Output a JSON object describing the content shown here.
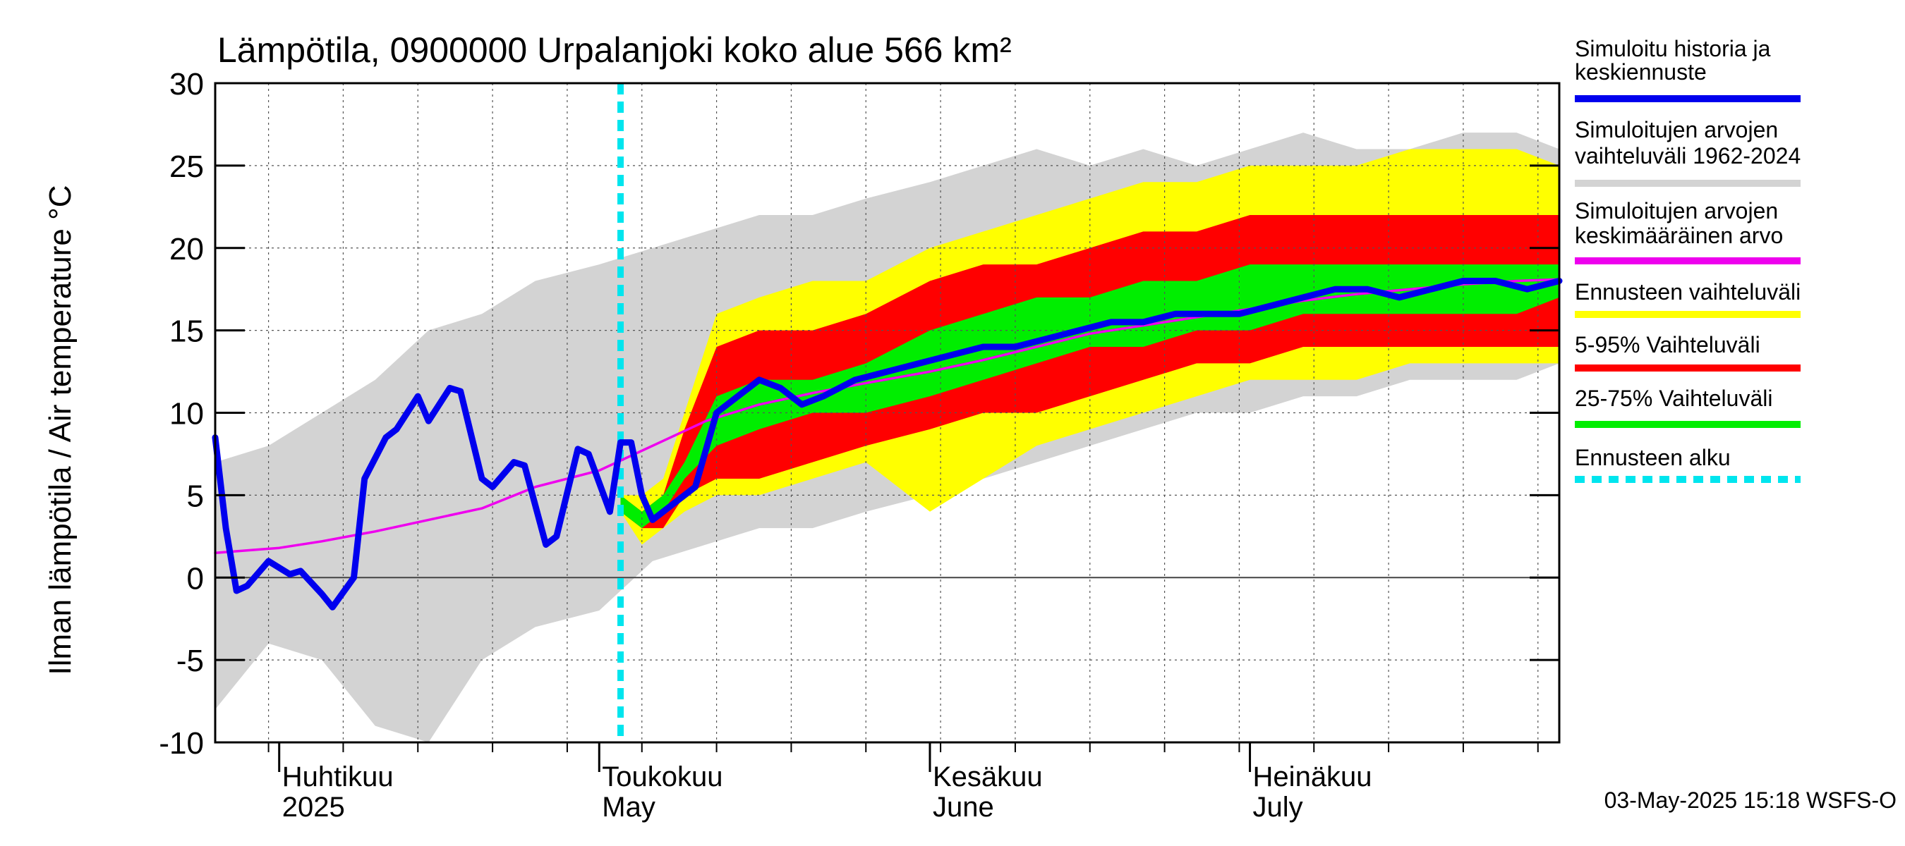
{
  "chart_data": {
    "type": "area",
    "title": "Lämpötila, 0900000 Urpalanjoki koko alue 566 km²",
    "ylabel": "Ilman lämpötila / Air temperature   °C",
    "ylim": [
      -10,
      30
    ],
    "yticks": [
      "30",
      "25",
      "20",
      "15",
      "10",
      "5",
      "0",
      "-5",
      "-10"
    ],
    "ytick_values": [
      30,
      25,
      20,
      15,
      10,
      5,
      0,
      -5,
      -10
    ],
    "x_start": "2025-03-26",
    "x_end": "2025-07-30",
    "grid": true,
    "months": [
      {
        "date": "2025-04-01",
        "label1": "Huhtikuu",
        "label2": "2025"
      },
      {
        "date": "2025-05-01",
        "label1": "Toukokuu",
        "label2": "May"
      },
      {
        "date": "2025-06-01",
        "label1": "Kesäkuu",
        "label2": "June"
      },
      {
        "date": "2025-07-01",
        "label1": "Heinäkuu",
        "label2": "July"
      }
    ],
    "forecast_start": "2025-05-03",
    "legend_position": "right",
    "legend": [
      {
        "line1": "Simuloitu historia ja",
        "line2": "keskiennuste",
        "color": "#0000ee",
        "style": "solid"
      },
      {
        "line1": "Simuloitujen arvojen",
        "line2": "vaihteluväli 1962-2024",
        "color": "#d3d3d3",
        "style": "solid"
      },
      {
        "line1": "Simuloitujen arvojen",
        "line2": "keskimääräinen arvo",
        "color": "#ee00ee",
        "style": "solid"
      },
      {
        "line1": "Ennusteen vaihteluväli",
        "line2": "",
        "color": "#ffff00",
        "style": "solid"
      },
      {
        "line1": "5-95% Vaihteluväli",
        "line2": "",
        "color": "#ff0000",
        "style": "solid"
      },
      {
        "line1": "25-75% Vaihteluväli",
        "line2": "",
        "color": "#00ee00",
        "style": "solid"
      },
      {
        "line1": "Ennusteen alku",
        "line2": "",
        "color": "#00e5ee",
        "style": "dashed"
      }
    ],
    "series": {
      "history_range": {
        "name": "Simuloitujen arvojen vaihteluväli 1962-2024",
        "x": [
          "2025-03-26",
          "2025-03-31",
          "2025-04-05",
          "2025-04-10",
          "2025-04-15",
          "2025-04-20",
          "2025-04-25",
          "2025-05-01",
          "2025-05-06",
          "2025-05-11",
          "2025-05-16",
          "2025-05-21",
          "2025-05-26",
          "2025-06-01",
          "2025-06-06",
          "2025-06-11",
          "2025-06-16",
          "2025-06-21",
          "2025-06-26",
          "2025-07-01",
          "2025-07-06",
          "2025-07-11",
          "2025-07-16",
          "2025-07-21",
          "2025-07-26",
          "2025-07-30"
        ],
        "low": [
          -8,
          -4,
          -5,
          -9,
          -10,
          -5,
          -3,
          -2,
          1,
          2,
          3,
          3,
          4,
          5,
          6,
          7,
          8,
          9,
          10,
          10,
          11,
          11,
          12,
          12,
          12,
          13
        ],
        "high": [
          7,
          8,
          10,
          12,
          15,
          16,
          18,
          19,
          20,
          21,
          22,
          22,
          23,
          24,
          25,
          26,
          25,
          26,
          25,
          26,
          27,
          26,
          26,
          27,
          27,
          26
        ]
      },
      "forecast_range": {
        "name": "Ennusteen vaihteluväli",
        "x": [
          "2025-05-03",
          "2025-05-05",
          "2025-05-07",
          "2025-05-09",
          "2025-05-12",
          "2025-05-16",
          "2025-05-21",
          "2025-05-26",
          "2025-06-01",
          "2025-06-06",
          "2025-06-11",
          "2025-06-16",
          "2025-06-21",
          "2025-06-26",
          "2025-07-01",
          "2025-07-06",
          "2025-07-11",
          "2025-07-16",
          "2025-07-21",
          "2025-07-26",
          "2025-07-30"
        ],
        "low": [
          4,
          2,
          3,
          4,
          5,
          5,
          6,
          7,
          4,
          6,
          8,
          9,
          10,
          11,
          12,
          12,
          12,
          13,
          13,
          13,
          13
        ],
        "high": [
          5,
          5,
          6,
          10,
          16,
          17,
          18,
          18,
          20,
          21,
          22,
          23,
          24,
          24,
          25,
          25,
          25,
          26,
          26,
          26,
          25
        ]
      },
      "p5_95": {
        "name": "5-95% Vaihteluväli",
        "x": [
          "2025-05-03",
          "2025-05-05",
          "2025-05-07",
          "2025-05-09",
          "2025-05-12",
          "2025-05-16",
          "2025-05-21",
          "2025-05-26",
          "2025-06-01",
          "2025-06-06",
          "2025-06-11",
          "2025-06-16",
          "2025-06-21",
          "2025-06-26",
          "2025-07-01",
          "2025-07-06",
          "2025-07-11",
          "2025-07-16",
          "2025-07-21",
          "2025-07-26",
          "2025-07-30"
        ],
        "low": [
          4,
          3,
          3,
          5,
          6,
          6,
          7,
          8,
          9,
          10,
          10,
          11,
          12,
          13,
          13,
          14,
          14,
          14,
          14,
          14,
          14
        ],
        "high": [
          5,
          4,
          5,
          9,
          14,
          15,
          15,
          16,
          18,
          19,
          19,
          20,
          21,
          21,
          22,
          22,
          22,
          22,
          22,
          22,
          22
        ]
      },
      "p25_75": {
        "name": "25-75% Vaihteluväli",
        "x": [
          "2025-05-03",
          "2025-05-05",
          "2025-05-07",
          "2025-05-09",
          "2025-05-12",
          "2025-05-16",
          "2025-05-21",
          "2025-05-26",
          "2025-06-01",
          "2025-06-06",
          "2025-06-11",
          "2025-06-16",
          "2025-06-21",
          "2025-06-26",
          "2025-07-01",
          "2025-07-06",
          "2025-07-11",
          "2025-07-16",
          "2025-07-21",
          "2025-07-26",
          "2025-07-30"
        ],
        "low": [
          4,
          3,
          4,
          6,
          8,
          9,
          10,
          10,
          11,
          12,
          13,
          14,
          14,
          15,
          15,
          16,
          16,
          16,
          16,
          16,
          17
        ],
        "high": [
          5,
          4,
          5,
          7,
          11,
          12,
          12,
          13,
          15,
          16,
          17,
          17,
          18,
          18,
          19,
          19,
          19,
          19,
          19,
          19,
          19
        ]
      },
      "median": {
        "name": "Simuloitu historia ja keskiennuste",
        "x": [
          "2025-03-26",
          "2025-03-27",
          "2025-03-28",
          "2025-03-29",
          "2025-03-31",
          "2025-04-02",
          "2025-04-03",
          "2025-04-05",
          "2025-04-06",
          "2025-04-08",
          "2025-04-09",
          "2025-04-11",
          "2025-04-12",
          "2025-04-14",
          "2025-04-15",
          "2025-04-17",
          "2025-04-18",
          "2025-04-20",
          "2025-04-21",
          "2025-04-23",
          "2025-04-24",
          "2025-04-26",
          "2025-04-27",
          "2025-04-29",
          "2025-04-30",
          "2025-05-02",
          "2025-05-03",
          "2025-05-04",
          "2025-05-05",
          "2025-05-06",
          "2025-05-08",
          "2025-05-10",
          "2025-05-12",
          "2025-05-14",
          "2025-05-16",
          "2025-05-18",
          "2025-05-20",
          "2025-05-22",
          "2025-05-25",
          "2025-05-28",
          "2025-05-31",
          "2025-06-03",
          "2025-06-06",
          "2025-06-09",
          "2025-06-12",
          "2025-06-15",
          "2025-06-18",
          "2025-06-21",
          "2025-06-24",
          "2025-06-27",
          "2025-06-30",
          "2025-07-03",
          "2025-07-06",
          "2025-07-09",
          "2025-07-12",
          "2025-07-15",
          "2025-07-18",
          "2025-07-21",
          "2025-07-24",
          "2025-07-27",
          "2025-07-30"
        ],
        "y": [
          8.5,
          3,
          -0.8,
          -0.5,
          1,
          0.2,
          0.4,
          -1,
          -1.8,
          0,
          6,
          8.5,
          9,
          11,
          9.5,
          11.5,
          11.3,
          6,
          5.5,
          7,
          6.8,
          2,
          2.5,
          7.8,
          7.5,
          4,
          8.2,
          8.2,
          5,
          3.5,
          4.5,
          5.5,
          10,
          11,
          12,
          11.5,
          10.5,
          11,
          12,
          12.5,
          13,
          13.5,
          14,
          14,
          14.5,
          15,
          15.5,
          15.5,
          16,
          16,
          16,
          16.5,
          17,
          17.5,
          17.5,
          17,
          17.5,
          18,
          18,
          17.5,
          18
        ]
      },
      "mean": {
        "name": "Simuloitujen arvojen keskimääräinen arvo",
        "x": [
          "2025-03-26",
          "2025-04-01",
          "2025-04-05",
          "2025-04-10",
          "2025-04-15",
          "2025-04-20",
          "2025-04-25",
          "2025-05-01",
          "2025-05-06",
          "2025-05-11",
          "2025-05-16",
          "2025-05-21",
          "2025-05-26",
          "2025-06-01",
          "2025-06-06",
          "2025-06-11",
          "2025-06-16",
          "2025-06-21",
          "2025-06-26",
          "2025-07-01",
          "2025-07-06",
          "2025-07-11",
          "2025-07-16",
          "2025-07-21",
          "2025-07-26",
          "2025-07-30"
        ],
        "y": [
          1.5,
          1.8,
          2.2,
          2.8,
          3.5,
          4.2,
          5.5,
          6.5,
          8,
          9.5,
          10.5,
          11.2,
          11.8,
          12.5,
          13.2,
          14,
          14.8,
          15.3,
          15.8,
          16.3,
          16.8,
          17.2,
          17.5,
          17.8,
          18,
          18.1
        ]
      }
    }
  },
  "footer": "03-May-2025 15:18 WSFS-O"
}
